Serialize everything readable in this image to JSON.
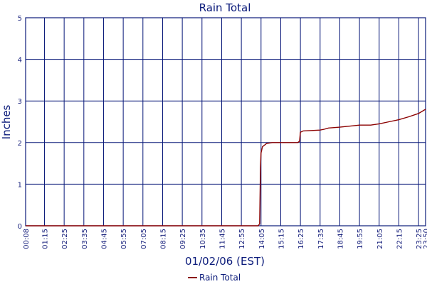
{
  "chart_data": {
    "type": "line",
    "title": "Rain Total",
    "xlabel": "01/02/06 (EST)",
    "ylabel": "Inches",
    "x_ticks": [
      "00:08",
      "01:15",
      "02:25",
      "03:35",
      "04:45",
      "05:55",
      "07:05",
      "08:15",
      "09:25",
      "10:35",
      "11:45",
      "12:55",
      "14:05",
      "15:15",
      "16:25",
      "17:35",
      "18:45",
      "19:55",
      "21:05",
      "22:15",
      "23:25",
      "23:50"
    ],
    "y_ticks": [
      "0",
      "1",
      "2",
      "3",
      "4",
      "5"
    ],
    "ylim": [
      0,
      5
    ],
    "xlim": [
      "00:08",
      "23:50"
    ],
    "grid": true,
    "legend_position": "bottom-center",
    "series": [
      {
        "name": "Rain Total",
        "color": "#8b0000",
        "points": [
          [
            "00:08",
            0.0
          ],
          [
            "13:55",
            0.0
          ],
          [
            "14:00",
            0.05
          ],
          [
            "14:03",
            1.4
          ],
          [
            "14:05",
            1.75
          ],
          [
            "14:10",
            1.9
          ],
          [
            "14:25",
            1.98
          ],
          [
            "14:45",
            2.0
          ],
          [
            "16:15",
            2.0
          ],
          [
            "16:22",
            2.03
          ],
          [
            "16:25",
            2.25
          ],
          [
            "16:35",
            2.28
          ],
          [
            "17:35",
            2.3
          ],
          [
            "17:50",
            2.32
          ],
          [
            "18:05",
            2.35
          ],
          [
            "18:45",
            2.37
          ],
          [
            "19:25",
            2.4
          ],
          [
            "19:55",
            2.42
          ],
          [
            "20:35",
            2.42
          ],
          [
            "21:05",
            2.45
          ],
          [
            "21:40",
            2.5
          ],
          [
            "22:15",
            2.55
          ],
          [
            "22:50",
            2.62
          ],
          [
            "23:25",
            2.7
          ],
          [
            "23:50",
            2.8
          ]
        ]
      }
    ]
  },
  "colors": {
    "grid": "#0a1a7a",
    "axis_text": "#1a237e",
    "series": "#8b0000"
  }
}
